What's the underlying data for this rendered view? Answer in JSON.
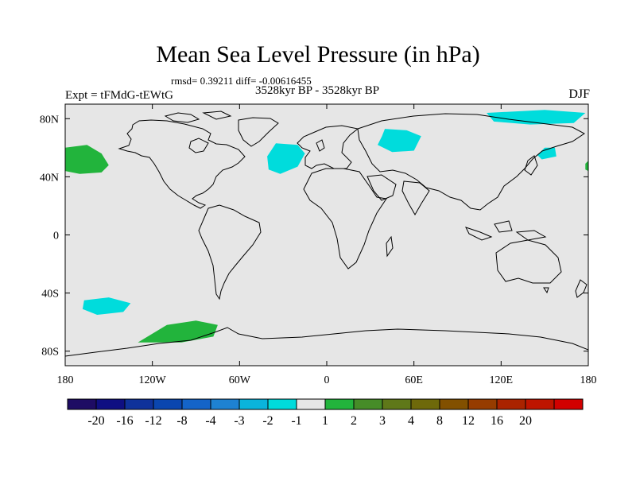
{
  "title": "Mean Sea Level Pressure (in hPa)",
  "stats": "rmsd= 0.39211 diff= -0.00616455",
  "expt_label": "Expt = tFMdG-tEWtG",
  "period": "3528kyr BP - 3528kyr BP",
  "season": "DJF",
  "colors": {
    "background": "#e6e6e6",
    "coast": "#000000",
    "cyan_region": "#00dcdc",
    "green_region": "#22b43c"
  },
  "map": {
    "lon_range": [
      -180,
      180
    ],
    "lat_range": [
      -90,
      90
    ],
    "lon_ticks": [
      {
        "value": -180,
        "label": "180"
      },
      {
        "value": -120,
        "label": "120W"
      },
      {
        "value": -60,
        "label": "60W"
      },
      {
        "value": 0,
        "label": "0"
      },
      {
        "value": 60,
        "label": "60E"
      },
      {
        "value": 120,
        "label": "120E"
      },
      {
        "value": 180,
        "label": "180"
      }
    ],
    "lat_ticks": [
      {
        "value": 80,
        "label": "80N"
      },
      {
        "value": 40,
        "label": "40N"
      },
      {
        "value": 0,
        "label": "0"
      },
      {
        "value": -40,
        "label": "40S"
      },
      {
        "value": -80,
        "label": "80S"
      }
    ],
    "anomaly_regions": [
      {
        "name": "north-pacific-green",
        "category": "1 to 2",
        "lonlat": [
          [
            -180,
            60
          ],
          [
            -165,
            62
          ],
          [
            -155,
            56
          ],
          [
            -150,
            48
          ],
          [
            -155,
            43
          ],
          [
            -170,
            42
          ],
          [
            -180,
            44
          ]
        ]
      },
      {
        "name": "dateline-east-green",
        "category": "1 to 2",
        "lonlat": [
          [
            180,
            51
          ],
          [
            178,
            49
          ],
          [
            178,
            45
          ],
          [
            180,
            44
          ]
        ]
      },
      {
        "name": "north-atlantic-cyan",
        "category": "-2 to -1",
        "lonlat": [
          [
            -35,
            63
          ],
          [
            -20,
            62
          ],
          [
            -15,
            56
          ],
          [
            -20,
            47
          ],
          [
            -32,
            42
          ],
          [
            -40,
            45
          ],
          [
            -41,
            54
          ]
        ]
      },
      {
        "name": "barents-cyan",
        "category": "-2 to -1",
        "lonlat": [
          [
            40,
            73
          ],
          [
            55,
            72
          ],
          [
            65,
            68
          ],
          [
            60,
            58
          ],
          [
            45,
            57
          ],
          [
            35,
            62
          ],
          [
            38,
            68
          ]
        ]
      },
      {
        "name": "arctic-cyan",
        "category": "-2 to -1",
        "lonlat": [
          [
            110,
            84
          ],
          [
            150,
            86
          ],
          [
            178,
            84
          ],
          [
            170,
            77
          ],
          [
            140,
            76
          ],
          [
            115,
            78
          ]
        ]
      },
      {
        "name": "kamchatka-cyan",
        "category": "-2 to -1",
        "lonlat": [
          [
            150,
            60
          ],
          [
            157,
            60
          ],
          [
            158,
            54
          ],
          [
            148,
            52
          ],
          [
            145,
            55
          ]
        ]
      },
      {
        "name": "south-pacific-cyan",
        "category": "-2 to -1",
        "lonlat": [
          [
            -167,
            -45
          ],
          [
            -150,
            -43
          ],
          [
            -135,
            -47
          ],
          [
            -140,
            -53
          ],
          [
            -158,
            -55
          ],
          [
            -168,
            -51
          ]
        ]
      },
      {
        "name": "amundsen-green",
        "category": "1 to 2",
        "lonlat": [
          [
            -130,
            -74
          ],
          [
            -110,
            -62
          ],
          [
            -90,
            -59
          ],
          [
            -75,
            -62
          ],
          [
            -78,
            -70
          ],
          [
            -100,
            -74
          ]
        ]
      }
    ]
  },
  "legend": {
    "colors": [
      "#1e0c64",
      "#0f0f82",
      "#0f329b",
      "#0a46af",
      "#1464c8",
      "#1e82d2",
      "#0ab4dc",
      "#00dcdc",
      "#e6e6e6",
      "#22b43c",
      "#468c28",
      "#5f7819",
      "#6e690a",
      "#825000",
      "#963c00",
      "#aa2300",
      "#be1400",
      "#d20000"
    ],
    "labels": [
      "-20",
      "-16",
      "-12",
      "-8",
      "-4",
      "-3",
      "-2",
      "-1",
      "1",
      "2",
      "3",
      "4",
      "8",
      "12",
      "16",
      "20"
    ]
  }
}
